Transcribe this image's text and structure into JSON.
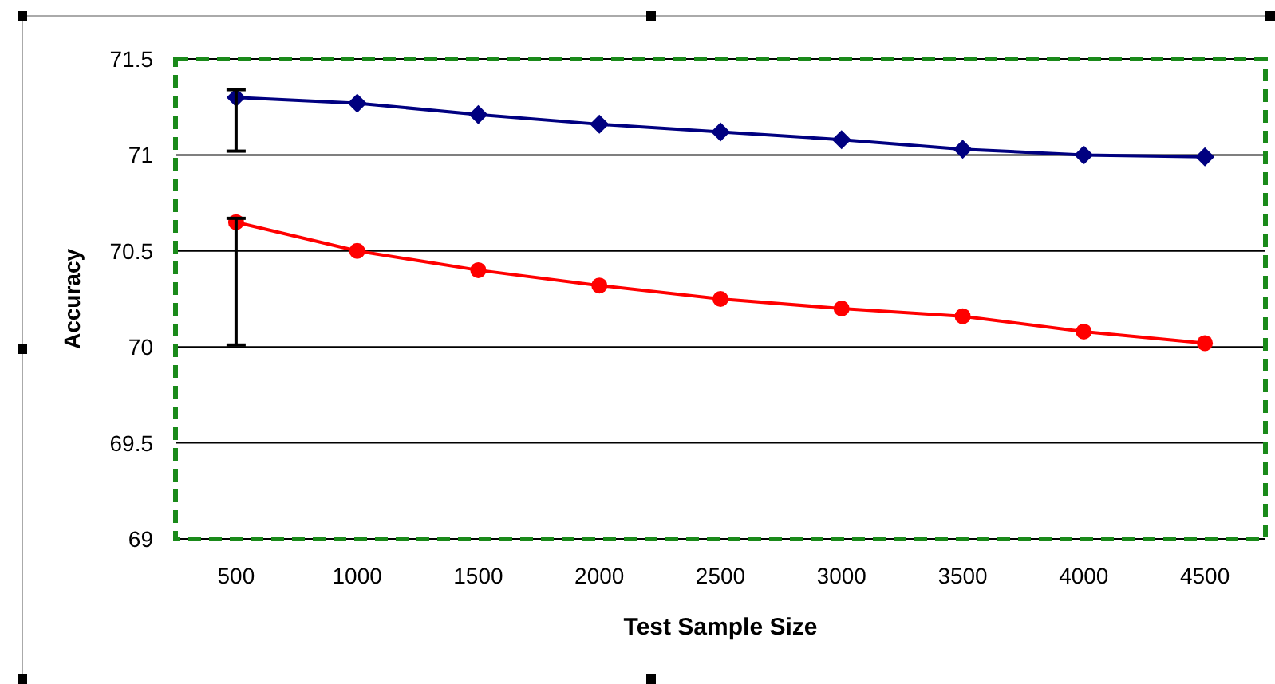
{
  "chart_data": {
    "type": "line",
    "xlabel": "Test Sample Size",
    "ylabel": "Accuracy",
    "categories": [
      "500",
      "1000",
      "1500",
      "2000",
      "2500",
      "3000",
      "3500",
      "4000",
      "4500"
    ],
    "ylim": [
      69,
      71.5
    ],
    "yticks": [
      69,
      69.5,
      70,
      70.5,
      71,
      71.5
    ],
    "grid": "y",
    "series": [
      {
        "color": "#000080",
        "marker": "diamond",
        "values": [
          71.3,
          71.27,
          71.21,
          71.16,
          71.12,
          71.08,
          71.03,
          71.0,
          70.99
        ],
        "errors": [
          [
            71.02,
            71.34
          ],
          null,
          null,
          null,
          null,
          null,
          null,
          null,
          null
        ]
      },
      {
        "color": "#ff0000",
        "marker": "circle",
        "values": [
          70.65,
          70.5,
          70.4,
          70.32,
          70.25,
          70.2,
          70.16,
          70.08,
          70.02
        ],
        "errors": [
          [
            70.01,
            70.67
          ],
          null,
          null,
          null,
          null,
          null,
          null,
          null,
          null
        ]
      }
    ]
  }
}
